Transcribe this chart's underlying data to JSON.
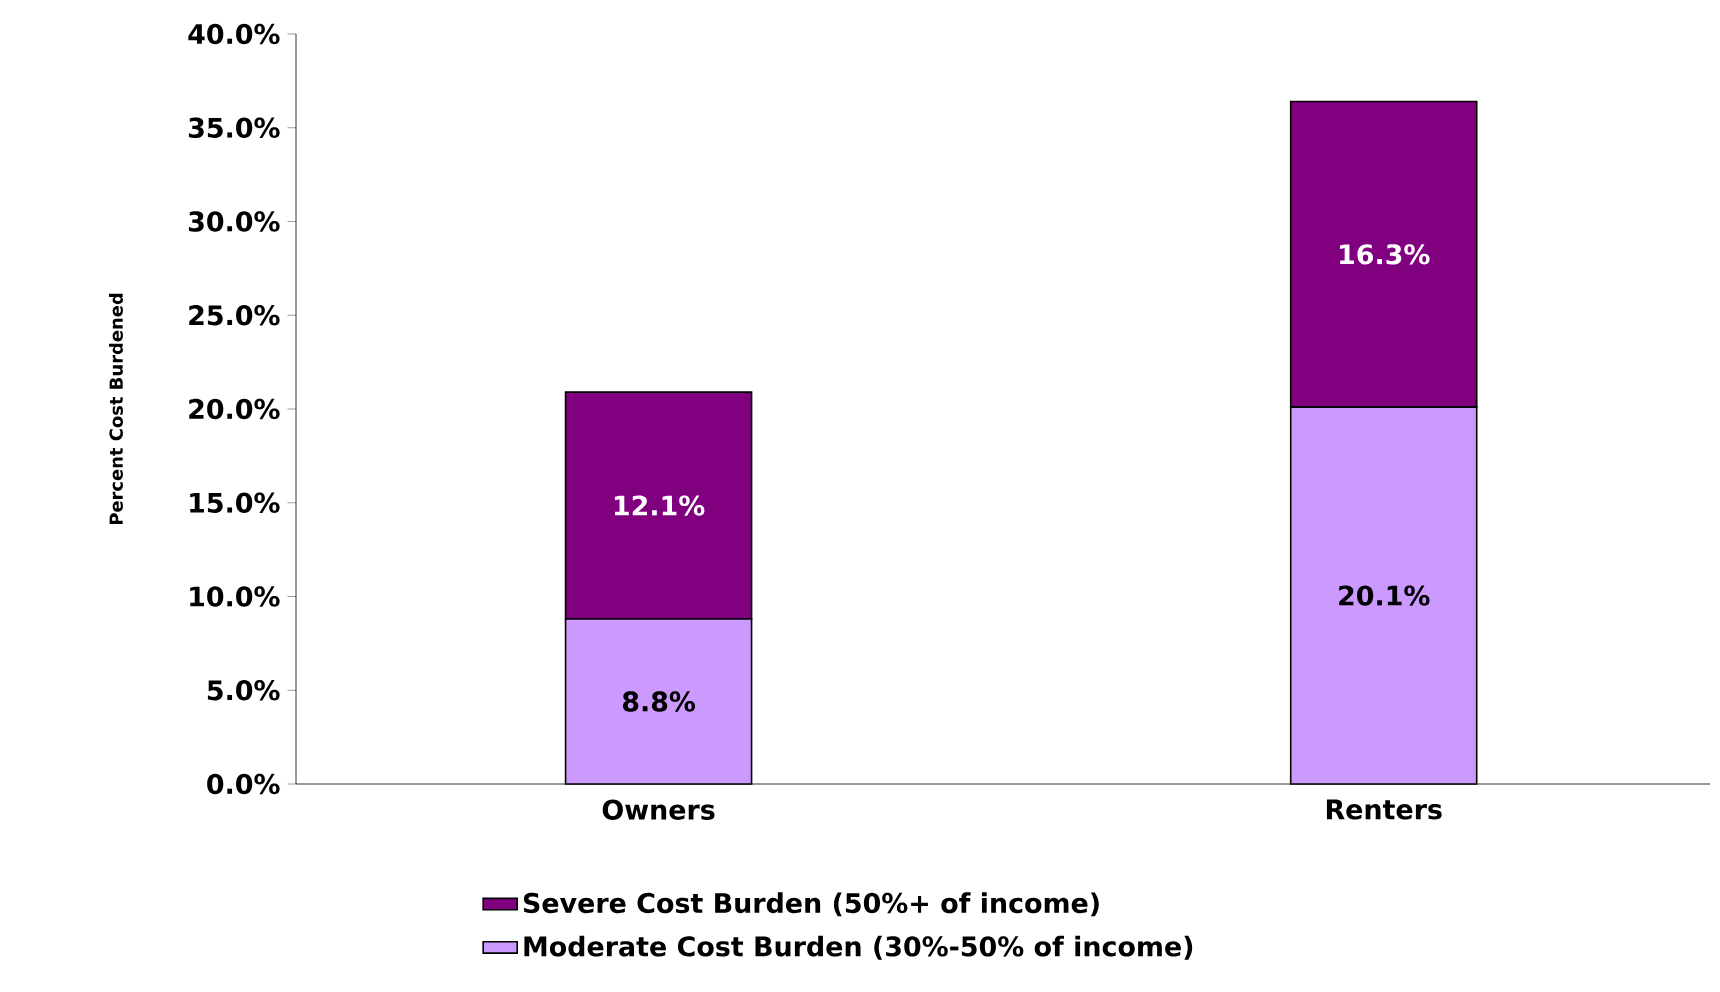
{
  "chart_data": {
    "type": "bar",
    "stacked": true,
    "ylabel": "Percent Cost Burdened",
    "categories": [
      "Owners",
      "Renters"
    ],
    "series": [
      {
        "name": "Moderate Cost Burden (30%-50% of income)",
        "color": "#cc99ff",
        "values": [
          8.8,
          20.1
        ],
        "value_labels": [
          "8.8%",
          "20.1%"
        ]
      },
      {
        "name": "Severe Cost Burden (50%+ of income)",
        "color": "#800080",
        "values": [
          12.1,
          16.3
        ],
        "value_labels": [
          "12.1%",
          "16.3%"
        ]
      }
    ],
    "ylim": [
      0,
      40
    ],
    "yticks": [
      {
        "value": 0,
        "label": "0.0%"
      },
      {
        "value": 5,
        "label": "5.0%"
      },
      {
        "value": 10,
        "label": "10.0%"
      },
      {
        "value": 15,
        "label": "15.0%"
      },
      {
        "value": 20,
        "label": "20.0%"
      },
      {
        "value": 25,
        "label": "25.0%"
      },
      {
        "value": 30,
        "label": "30.0%"
      },
      {
        "value": 35,
        "label": "35.0%"
      },
      {
        "value": 40,
        "label": "40.0%"
      }
    ],
    "grid": false,
    "legend": "bottom"
  }
}
